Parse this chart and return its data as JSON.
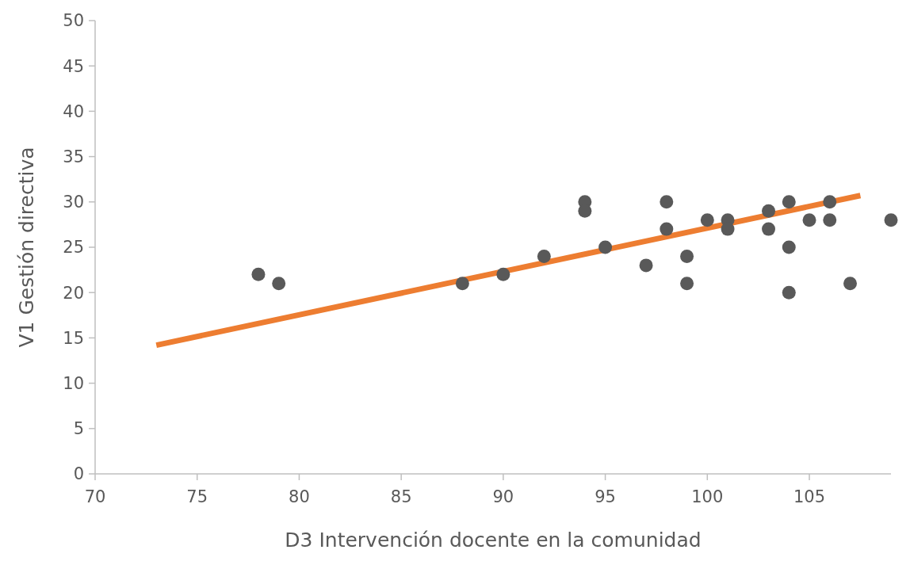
{
  "chart_data": {
    "type": "scatter",
    "xlabel": "D3 Intervención docente en la comunidad",
    "ylabel": "V1 Gestión directiva",
    "xlim": [
      70,
      109
    ],
    "ylim": [
      0,
      50
    ],
    "xticks": [
      70,
      75,
      80,
      85,
      90,
      95,
      100,
      105
    ],
    "yticks": [
      0,
      5,
      10,
      15,
      20,
      25,
      30,
      35,
      40,
      45,
      50
    ],
    "grid": false,
    "marker": "circle",
    "series": [
      {
        "color": "#595959",
        "x": [
          78,
          79,
          88,
          90,
          92,
          94,
          94,
          95,
          97,
          98,
          98,
          99,
          99,
          100,
          101,
          101,
          103,
          103,
          104,
          104,
          104,
          105,
          106,
          106,
          107,
          109
        ],
        "values": [
          22,
          21,
          21,
          22,
          24,
          30,
          29,
          25,
          23,
          30,
          27,
          24,
          21,
          28,
          28,
          27,
          29,
          27,
          30,
          25,
          20,
          28,
          30,
          28,
          21,
          28
        ]
      },
      {
        "type": "line",
        "color": "#ed7d31",
        "x": [
          73,
          107.5
        ],
        "values": [
          14.2,
          30.7
        ],
        "marker": "none",
        "line_style": "solid"
      }
    ]
  }
}
